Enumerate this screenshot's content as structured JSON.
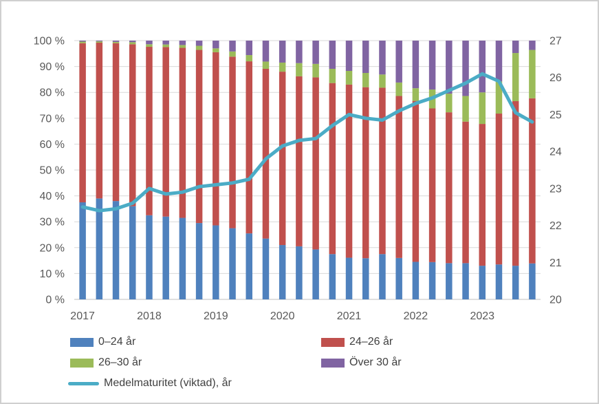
{
  "chart_data": {
    "type": "bar",
    "subtype": "stacked-100pct-columns-with-line-overlay",
    "n_bars": 28,
    "bars_per_year": 4,
    "x_tick_labels": [
      "2017",
      "2018",
      "2019",
      "2020",
      "2021",
      "2022",
      "2023"
    ],
    "x_tick_bar_index": [
      0,
      4,
      8,
      12,
      16,
      20,
      24
    ],
    "left_axis": {
      "min": 0,
      "max": 100,
      "tick_labels": [
        "100 %",
        "90 %",
        "80 %",
        "70 %",
        "60 %",
        "50 %",
        "40 %",
        "30 %",
        "20 %",
        "10 %",
        "0 %"
      ],
      "tick_values": [
        100,
        90,
        80,
        70,
        60,
        50,
        40,
        30,
        20,
        10,
        0
      ]
    },
    "right_axis": {
      "min": 20,
      "max": 27,
      "tick_labels": [
        "27",
        "26",
        "25",
        "24",
        "23",
        "22",
        "21",
        "20"
      ],
      "tick_values": [
        27,
        26,
        25,
        24,
        23,
        22,
        21,
        20
      ]
    },
    "grid": true,
    "series": [
      {
        "name": "0–24 år",
        "color": "#4F81BD",
        "values": [
          37.5,
          39,
          38,
          36,
          32.5,
          32,
          31.5,
          29.5,
          28.6,
          27.5,
          25.5,
          23.5,
          21,
          20.5,
          19.3,
          17.5,
          16.1,
          15.9,
          17.5,
          16,
          14.5,
          14.4,
          14,
          14,
          13,
          13.5,
          13,
          13.9
        ]
      },
      {
        "name": "24–26 år",
        "color": "#C0504D",
        "values": [
          61.5,
          60.2,
          61,
          62.6,
          65.1,
          65.5,
          65.7,
          66.9,
          66.9,
          66.3,
          66.5,
          65.6,
          67,
          65.7,
          66.5,
          66.1,
          66.9,
          66.1,
          64.3,
          62.6,
          62.2,
          59.4,
          58.3,
          54.7,
          54.8,
          58.3,
          63.6,
          63.8
        ]
      },
      {
        "name": "26–30 år",
        "color": "#9BBB59",
        "values": [
          0.6,
          0.5,
          0.5,
          0.8,
          1,
          1,
          1.1,
          1.6,
          1.5,
          2,
          2.4,
          2.8,
          3.5,
          5.1,
          5.2,
          5.5,
          5.3,
          5.5,
          5.1,
          5.2,
          4.9,
          7.3,
          7.2,
          9.9,
          12.2,
          12.4,
          18.6,
          18.7
        ]
      },
      {
        "name": "Över 30 år",
        "color": "#8064A2",
        "values": [
          0.4,
          0.3,
          0.5,
          0.6,
          1.4,
          1.5,
          1.7,
          2,
          3,
          4.2,
          5.6,
          8.1,
          8.5,
          8.7,
          9,
          10.9,
          11.7,
          12.5,
          13.1,
          16.2,
          18.4,
          18.9,
          20.5,
          21.4,
          20,
          15.8,
          4.8,
          3.6
        ]
      }
    ],
    "line_series": {
      "name": "Medelmaturitet (viktad), år",
      "color": "#4BACC6",
      "axis": "right",
      "values": [
        22.5,
        22.4,
        22.45,
        22.6,
        23,
        22.85,
        22.9,
        23.05,
        23.1,
        23.15,
        23.25,
        23.8,
        24.15,
        24.3,
        24.35,
        24.7,
        25,
        24.9,
        24.85,
        25.1,
        25.3,
        25.45,
        25.65,
        25.85,
        26.1,
        25.9,
        25.05,
        24.8
      ]
    }
  },
  "legend": {
    "items": [
      {
        "label": "0–24 år",
        "color": "#4F81BD",
        "type": "box"
      },
      {
        "label": "24–26 år",
        "color": "#C0504D",
        "type": "box"
      },
      {
        "label": "26–30 år",
        "color": "#9BBB59",
        "type": "box"
      },
      {
        "label": "Över 30 år",
        "color": "#8064A2",
        "type": "box"
      },
      {
        "label": "Medelmaturitet (viktad), år",
        "color": "#4BACC6",
        "type": "line"
      }
    ]
  },
  "colors": {
    "gridline": "#D9D9D9",
    "axis_line": "#BFBFBF",
    "axis_text": "#595959",
    "legend_text": "#404040",
    "background": "#FFFFFF",
    "border": "#CFCFCF"
  }
}
